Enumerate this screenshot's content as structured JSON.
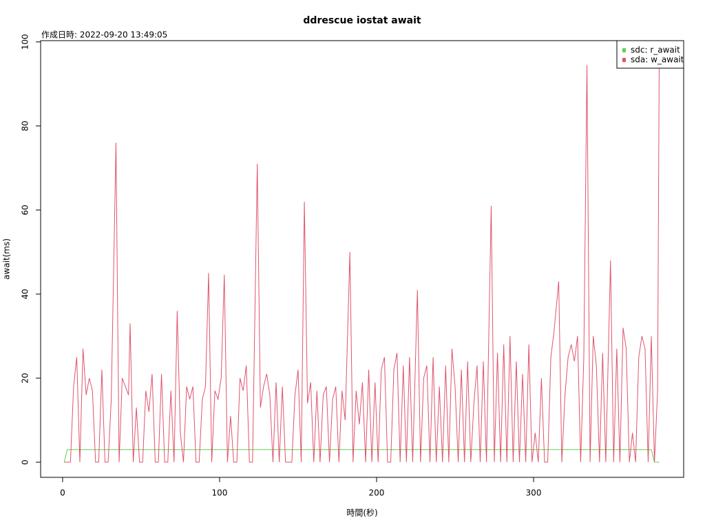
{
  "chart_data": {
    "type": "line",
    "title": "ddrescue iostat await",
    "subtitle": "作成日時: 2022-09-20 13:49:05",
    "x_label": "時間(秒)",
    "y_label": "await(ms)",
    "xlim": [
      -14,
      395.6
    ],
    "ylim": [
      -3.6,
      100.3
    ],
    "xticks": [
      0,
      100,
      200,
      300
    ],
    "yticks": [
      0,
      20,
      40,
      60,
      80,
      100
    ],
    "legend": "top-right",
    "x": [
      1,
      3,
      5,
      7,
      9,
      11,
      13,
      15,
      17,
      19,
      21,
      23,
      25,
      27,
      29,
      31,
      34,
      36,
      38,
      40,
      42,
      43,
      45,
      47,
      49,
      51,
      53,
      55,
      57,
      59,
      61,
      63,
      65,
      67,
      69,
      71,
      73,
      75,
      77,
      79,
      81,
      83,
      85,
      87,
      89,
      91,
      93,
      95,
      97,
      99,
      101,
      103,
      105,
      107,
      109,
      111,
      113,
      115,
      117,
      119,
      121,
      124,
      126,
      128,
      130,
      132,
      134,
      136,
      138,
      140,
      142,
      144,
      146,
      148,
      150,
      152,
      154,
      156,
      158,
      160,
      162,
      164,
      166,
      168,
      170,
      172,
      174,
      176,
      178,
      180,
      183,
      185,
      187,
      189,
      191,
      193,
      195,
      197,
      199,
      201,
      203,
      205,
      207,
      209,
      211,
      213,
      215,
      217,
      219,
      221,
      223,
      226,
      228,
      230,
      232,
      234,
      236,
      238,
      240,
      242,
      244,
      246,
      248,
      250,
      252,
      254,
      256,
      258,
      260,
      262,
      264,
      266,
      268,
      270,
      273,
      275,
      277,
      279,
      281,
      283,
      285,
      287,
      289,
      291,
      293,
      295,
      297,
      299,
      301,
      303,
      305,
      307,
      309,
      311,
      313,
      316,
      318,
      320,
      322,
      324,
      326,
      328,
      330,
      332,
      334,
      336,
      338,
      340,
      342,
      344,
      346,
      349,
      351,
      353,
      355,
      357,
      359,
      361,
      363,
      365,
      367,
      369,
      371,
      373,
      375,
      377,
      379,
      380
    ],
    "series": [
      {
        "name": "sdc: r_await",
        "color": "#61d04f",
        "values": [
          0,
          3,
          3,
          3,
          3,
          3,
          3,
          3,
          3,
          3,
          3,
          3,
          3,
          3,
          3,
          3,
          3,
          3,
          3,
          3,
          3,
          3,
          3,
          3,
          3,
          3,
          3,
          3,
          3,
          3,
          3,
          3,
          3,
          3,
          3,
          3,
          3,
          3,
          3,
          3,
          3,
          3,
          3,
          3,
          3,
          3,
          3,
          3,
          3,
          3,
          3,
          3,
          3,
          3,
          3,
          3,
          3,
          3,
          3,
          3,
          3,
          3,
          3,
          3,
          3,
          3,
          3,
          3,
          3,
          3,
          3,
          3,
          3,
          3,
          3,
          3,
          3,
          3,
          3,
          3,
          3,
          3,
          3,
          3,
          3,
          3,
          3,
          3,
          3,
          3,
          3,
          3,
          3,
          3,
          3,
          3,
          3,
          3,
          3,
          3,
          3,
          3,
          3,
          3,
          3,
          3,
          3,
          3,
          3,
          3,
          3,
          3,
          3,
          3,
          3,
          3,
          3,
          3,
          3,
          3,
          3,
          3,
          3,
          3,
          3,
          3,
          3,
          3,
          3,
          3,
          3,
          3,
          3,
          3,
          3,
          3,
          3,
          3,
          3,
          3,
          3,
          3,
          3,
          3,
          3,
          3,
          3,
          3,
          3,
          3,
          3,
          3,
          3,
          3,
          3,
          3,
          3,
          3,
          3,
          3,
          3,
          3,
          3,
          3,
          3,
          3,
          3,
          3,
          3,
          3,
          3,
          3,
          3,
          3,
          3,
          3,
          3,
          3,
          3,
          3,
          3,
          3,
          3,
          3,
          3,
          0,
          0,
          0
        ]
      },
      {
        "name": "sda: w_await",
        "color": "#df536b",
        "values": [
          0,
          0,
          0,
          18,
          25,
          0,
          27,
          16,
          20,
          17,
          0,
          0,
          22,
          0,
          0,
          15,
          76,
          0,
          20,
          18,
          16,
          33,
          0,
          13,
          0,
          0,
          17,
          12,
          21,
          0,
          0,
          21,
          0,
          0,
          17,
          0,
          36,
          7,
          0,
          18,
          15,
          18,
          0,
          0,
          15,
          18,
          45,
          0,
          17,
          15,
          20,
          44.6,
          0,
          11,
          0,
          0,
          20,
          17,
          23,
          0,
          0,
          71,
          13,
          18,
          21,
          16,
          0,
          19,
          0,
          18,
          0,
          0,
          0,
          16,
          22,
          0,
          62,
          14,
          19,
          0,
          17,
          0,
          16,
          18,
          0,
          15,
          18,
          0,
          17,
          10,
          50,
          0,
          17,
          9,
          19,
          0,
          22,
          0,
          19,
          0,
          22,
          25,
          0,
          0,
          22,
          26,
          0,
          23,
          0,
          25,
          0,
          41,
          0,
          20,
          23,
          0,
          25,
          0,
          18,
          0,
          23,
          0,
          27,
          18,
          0,
          22,
          0,
          24,
          0,
          14,
          23,
          0,
          24,
          0,
          61,
          0,
          26,
          0,
          28,
          0,
          30,
          0,
          24,
          0,
          21,
          0,
          28,
          0,
          7,
          0,
          20,
          0,
          0,
          25,
          31,
          43,
          0,
          16,
          25,
          28,
          24,
          30,
          0,
          25,
          94.5,
          0,
          30,
          23,
          0,
          26,
          0,
          48,
          0,
          27,
          0,
          32,
          27,
          0,
          7,
          0,
          25,
          30,
          27,
          0,
          30,
          0,
          17,
          94
        ]
      }
    ]
  }
}
